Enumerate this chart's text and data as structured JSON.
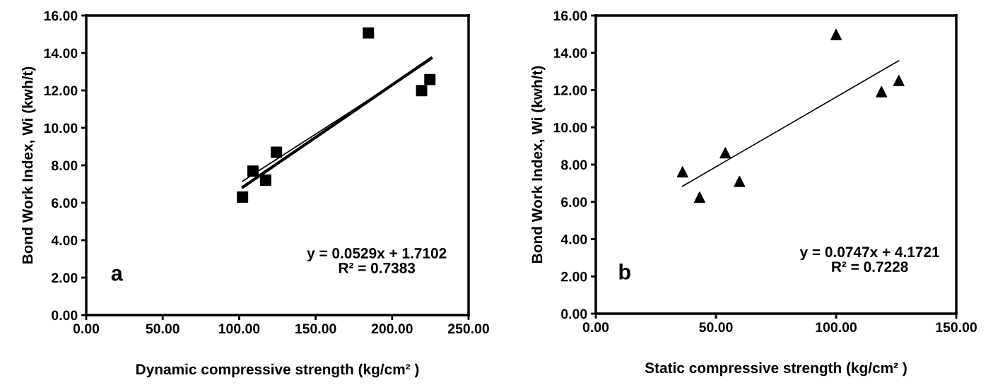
{
  "chart_data": [
    {
      "type": "scatter",
      "xlabel": "Dynamic compressive strength (kg/cm² )",
      "ylabel": "Bond Work Index, Wi (kwh/t)",
      "marker": "square",
      "grid": false,
      "legend": false,
      "xlim": [
        0,
        250
      ],
      "xticks": [
        {
          "value": 0,
          "label": "0.00"
        },
        {
          "value": 50,
          "label": "50.00"
        },
        {
          "value": 100,
          "label": "100.00"
        },
        {
          "value": 150,
          "label": "150.00"
        },
        {
          "value": 200,
          "label": "200.00"
        },
        {
          "value": 250,
          "label": "250.00"
        }
      ],
      "ylim": [
        0,
        16
      ],
      "yticks": [
        {
          "value": 0,
          "label": "0.00"
        },
        {
          "value": 2,
          "label": "2.00"
        },
        {
          "value": 4,
          "label": "4.00"
        },
        {
          "value": 6,
          "label": "6.00"
        },
        {
          "value": 8,
          "label": "8.00"
        },
        {
          "value": 10,
          "label": "10.00"
        },
        {
          "value": 12,
          "label": "12.00"
        },
        {
          "value": 14,
          "label": "14.00"
        },
        {
          "value": 16,
          "label": "16.00"
        }
      ],
      "annotations": [
        "a",
        "y = 0.0529x + 1.7102\nR² = 0.7383"
      ],
      "series": [
        {
          "color": "#000000",
          "x": [
            102.2,
            109.0,
            117.3,
            124.4,
            184.5,
            219.3,
            224.7
          ],
          "values": [
            6.3,
            7.69,
            7.21,
            8.7,
            15.07,
            11.99,
            12.58
          ]
        },
        {
          "type": "line",
          "color": "#000000",
          "marker": "none",
          "x": [
            102.2,
            224.7
          ],
          "values": [
            7.15,
            13.6
          ]
        },
        {
          "type": "line",
          "color": "#000000",
          "marker": "none",
          "x": [
            102.5,
            225.5
          ],
          "values": [
            6.84,
            13.72
          ]
        }
      ]
    },
    {
      "type": "scatter",
      "xlabel": "Static compressive strength (kg/cm² )",
      "ylabel": "Bond Work Index, Wi (kwh/t)",
      "marker": "triangle",
      "grid": false,
      "legend": false,
      "xlim": [
        0,
        150
      ],
      "xticks": [
        {
          "value": 0,
          "label": "0.00"
        },
        {
          "value": 50,
          "label": "50.00"
        },
        {
          "value": 100,
          "label": "100.00"
        },
        {
          "value": 150,
          "label": "150.00"
        }
      ],
      "ylim": [
        0,
        16
      ],
      "yticks": [
        {
          "value": 0,
          "label": "0.00"
        },
        {
          "value": 2,
          "label": "2.00"
        },
        {
          "value": 4,
          "label": "4.00"
        },
        {
          "value": 6,
          "label": "6.00"
        },
        {
          "value": 8,
          "label": "8.00"
        },
        {
          "value": 10,
          "label": "10.00"
        },
        {
          "value": 12,
          "label": "12.00"
        },
        {
          "value": 14,
          "label": "14.00"
        },
        {
          "value": 16,
          "label": "16.00"
        }
      ],
      "annotations": [
        "b",
        "y = 0.0747x + 4.1721\nR² = 0.7228"
      ],
      "series": [
        {
          "color": "#000000",
          "x": [
            36.1,
            43.2,
            53.9,
            59.8,
            100.0,
            118.9,
            126.1
          ],
          "values": [
            7.61,
            6.25,
            8.63,
            7.1,
            14.98,
            11.91,
            12.51
          ]
        },
        {
          "type": "line",
          "color": "#000000",
          "marker": "none",
          "x": [
            36.1,
            126.1
          ],
          "values": [
            6.84,
            13.58
          ]
        }
      ]
    }
  ]
}
